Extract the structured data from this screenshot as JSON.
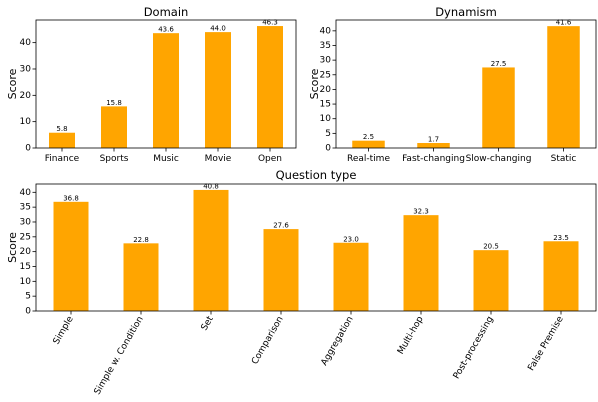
{
  "chart_data": [
    {
      "type": "bar",
      "title": "Domain",
      "xlabel": "",
      "ylabel": "Score",
      "categories": [
        "Finance",
        "Sports",
        "Music",
        "Movie",
        "Open"
      ],
      "values": [
        5.8,
        15.8,
        43.6,
        44.0,
        46.3
      ],
      "value_labels": [
        "5.8",
        "15.8",
        "43.6",
        "44.0",
        "46.3"
      ],
      "yticks": [
        0,
        10,
        20,
        30,
        40
      ],
      "ylim": [
        0,
        48.6
      ],
      "color": "#ffa500",
      "grid": false,
      "x_tick_rotation": 0
    },
    {
      "type": "bar",
      "title": "Dynamism",
      "xlabel": "",
      "ylabel": "Score",
      "categories": [
        "Real-time",
        "Fast-changing",
        "Slow-changing",
        "Static"
      ],
      "values": [
        2.5,
        1.7,
        27.5,
        41.6
      ],
      "value_labels": [
        "2.5",
        "1.7",
        "27.5",
        "41.6"
      ],
      "yticks": [
        0,
        5,
        10,
        15,
        20,
        25,
        30,
        35,
        40
      ],
      "ylim": [
        0,
        43.7
      ],
      "color": "#ffa500",
      "grid": false,
      "x_tick_rotation": 0
    },
    {
      "type": "bar",
      "title": "Question type",
      "xlabel": "",
      "ylabel": "Score",
      "categories": [
        "Simple",
        "Simple w. Condition",
        "Set",
        "Comparison",
        "Aggregation",
        "Multi-hop",
        "Post-processing",
        "False Premise"
      ],
      "values": [
        36.8,
        22.8,
        40.8,
        27.6,
        23.0,
        32.3,
        20.5,
        23.5
      ],
      "value_labels": [
        "36.8",
        "22.8",
        "40.8",
        "27.6",
        "23.0",
        "32.3",
        "20.5",
        "23.5"
      ],
      "yticks": [
        0,
        5,
        10,
        15,
        20,
        25,
        30,
        35,
        40
      ],
      "ylim": [
        0,
        42.8
      ],
      "color": "#ffa500",
      "grid": false,
      "x_tick_rotation": -60
    }
  ]
}
